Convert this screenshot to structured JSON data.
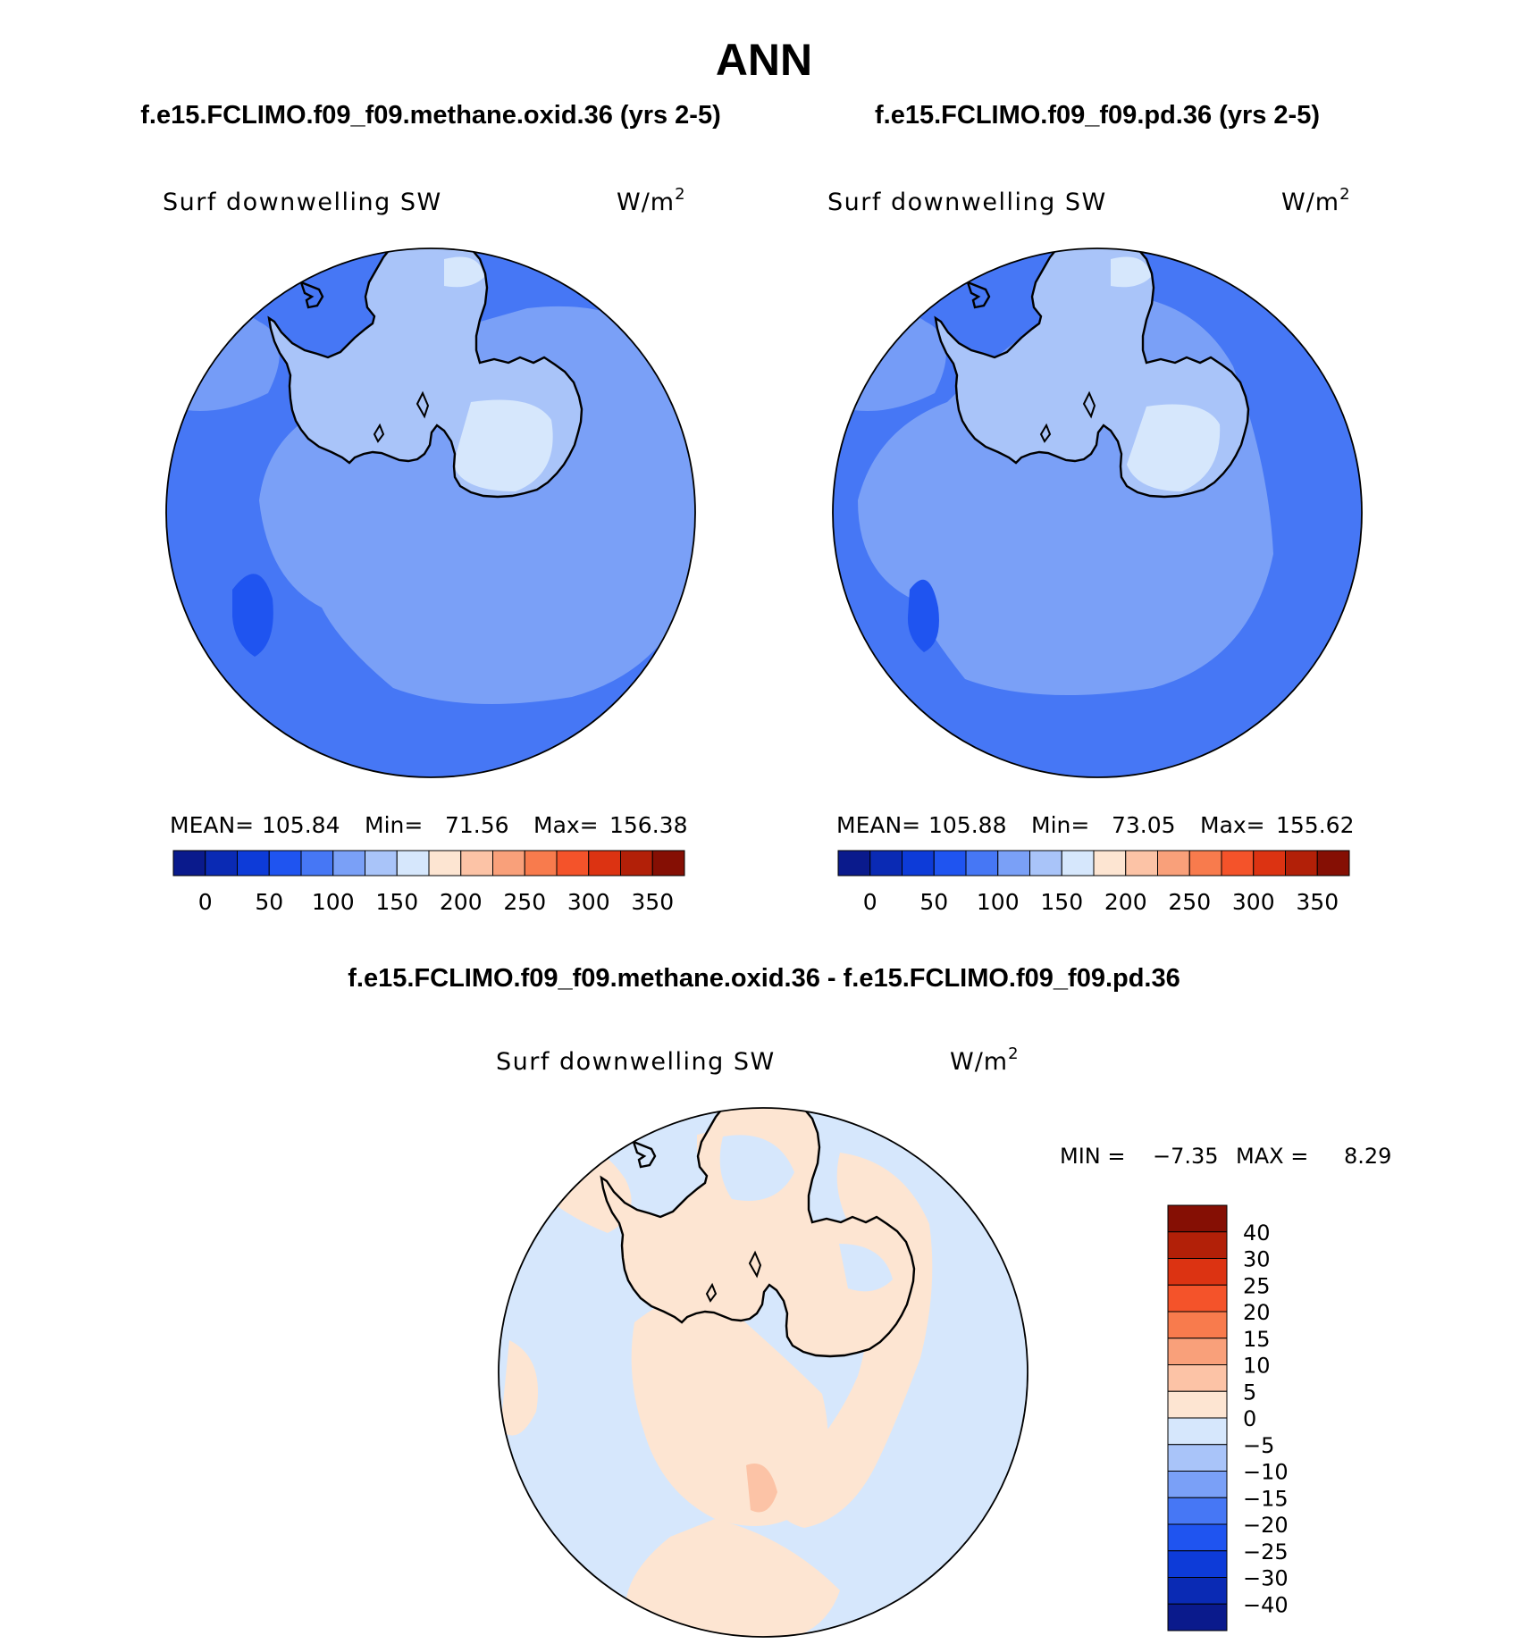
{
  "title": "ANN",
  "panel1": {
    "case": "f.e15.FCLIMO.f09_f09.methane.oxid.36 (yrs 2-5)",
    "variable": "Surf downwelling SW",
    "units_base": "W/m",
    "units_sup": "2",
    "stats": {
      "mean_label": "MEAN=",
      "mean": "105.84",
      "min_label": "Min=",
      "min": "71.56",
      "max_label": "Max=",
      "max": "156.38"
    }
  },
  "panel2": {
    "case": "f.e15.FCLIMO.f09_f09.pd.36 (yrs 2-5)",
    "variable": "Surf downwelling SW",
    "units_base": "W/m",
    "units_sup": "2",
    "stats": {
      "mean_label": "MEAN=",
      "mean": "105.88",
      "min_label": "Min=",
      "min": "73.05",
      "max_label": "Max=",
      "max": "155.62"
    }
  },
  "panel3": {
    "case": "f.e15.FCLIMO.f09_f09.methane.oxid.36 - f.e15.FCLIMO.f09_f09.pd.36",
    "variable": "Surf downwelling SW",
    "units_base": "W/m",
    "units_sup": "2",
    "stats": {
      "min_label": "MIN =",
      "min": "−7.35",
      "max_label": "MAX =",
      "max": "8.29"
    }
  },
  "colorbar_abs": {
    "colors": [
      "#0a1a8c",
      "#0a2ab4",
      "#0d3bd8",
      "#1f54f0",
      "#4677f5",
      "#7aa0f7",
      "#a9c4f9",
      "#d6e7fc",
      "#fde5d2",
      "#fcc3a6",
      "#f9a07a",
      "#f87b4d",
      "#f4532a",
      "#dc3312",
      "#b22008",
      "#850f04"
    ],
    "labels": [
      "0",
      "50",
      "100",
      "150",
      "200",
      "250",
      "300",
      "350"
    ]
  },
  "colorbar_diff": {
    "colors": [
      "#850f04",
      "#b22008",
      "#dc3312",
      "#f4532a",
      "#f87b4d",
      "#f9a07a",
      "#fcc3a6",
      "#fde5d2",
      "#d6e7fc",
      "#a9c4f9",
      "#7aa0f7",
      "#4677f5",
      "#1f54f0",
      "#0d3bd8",
      "#0a2ab4",
      "#0a1a8c"
    ],
    "labels": [
      "40",
      "30",
      "25",
      "20",
      "15",
      "10",
      "5",
      "0",
      "−5",
      "−10",
      "−15",
      "−20",
      "−25",
      "−30",
      "−40"
    ]
  }
}
